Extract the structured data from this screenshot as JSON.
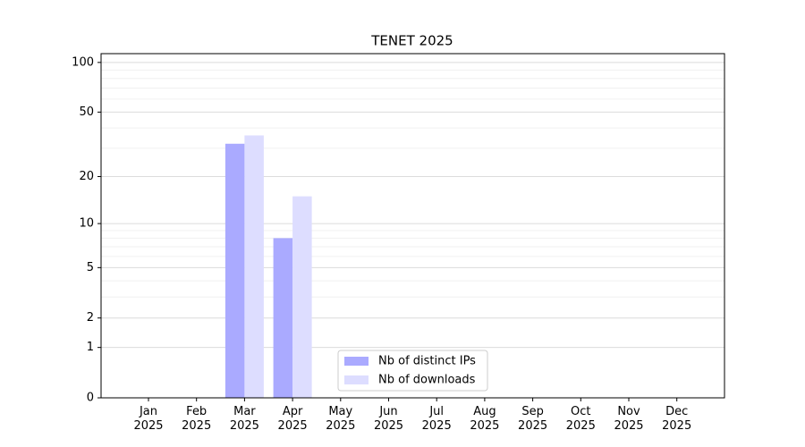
{
  "chart_data": {
    "type": "bar",
    "title": "TENET 2025",
    "y_scale": "log1p",
    "categories": [
      "Jan\n2025",
      "Feb\n2025",
      "Mar\n2025",
      "Apr\n2025",
      "May\n2025",
      "Jun\n2025",
      "Jul\n2025",
      "Aug\n2025",
      "Sep\n2025",
      "Oct\n2025",
      "Nov\n2025",
      "Dec\n2025"
    ],
    "series": [
      {
        "name": "Nb of distinct IPs",
        "color": "#aaaaff",
        "values": [
          0,
          0,
          32,
          8,
          0,
          0,
          0,
          0,
          0,
          0,
          0,
          0
        ]
      },
      {
        "name": "Nb of downloads",
        "color": "#ddddff",
        "values": [
          0,
          0,
          36,
          15,
          0,
          0,
          0,
          0,
          0,
          0,
          0,
          0
        ]
      }
    ],
    "ylim": [
      0,
      113
    ],
    "yticks": [
      0,
      1,
      2,
      5,
      10,
      20,
      50,
      100
    ],
    "minor_yticks": [
      3,
      4,
      6,
      7,
      8,
      9,
      30,
      40,
      60,
      70,
      80,
      90
    ],
    "grid": true,
    "legend": "lower center"
  }
}
